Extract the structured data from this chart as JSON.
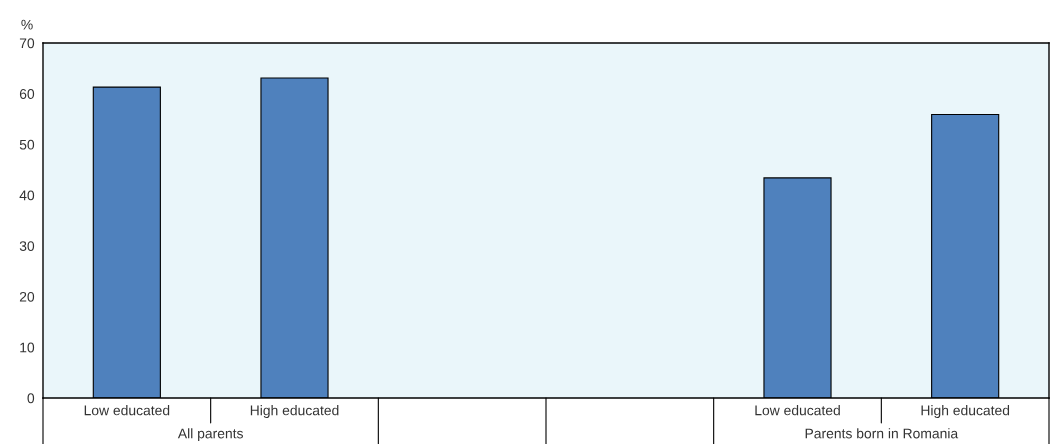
{
  "chart_data": {
    "type": "bar",
    "categories": [
      "Low educated",
      "High educated",
      null,
      null,
      "Low educated",
      "High educated"
    ],
    "values": [
      61.3,
      63.1,
      null,
      null,
      43.4,
      55.9
    ],
    "color": "#4f81bd",
    "ylabel": "%",
    "ylim": [
      0,
      70
    ],
    "yticks": [
      0,
      10,
      20,
      30,
      40,
      50,
      60,
      70
    ],
    "annotations": [
      "All parents",
      "Parents born in Romania"
    ],
    "grid": false,
    "legend": false
  }
}
